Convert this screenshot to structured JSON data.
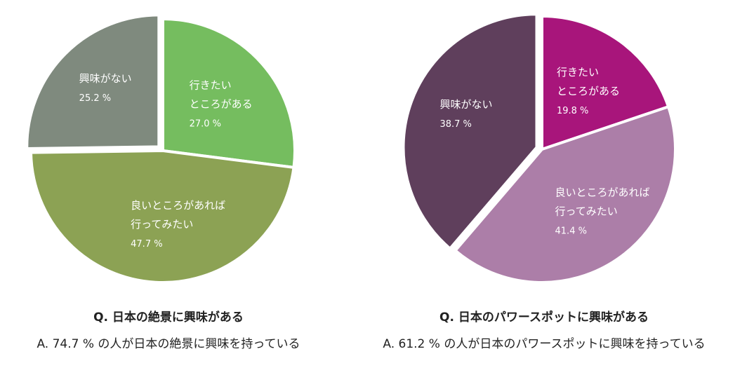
{
  "chart_data": [
    {
      "type": "pie",
      "title": "Q. 日本の絶景に興味がある",
      "caption": "A. 74.7 % の人が日本の絶景に興味を持っている",
      "slices": [
        {
          "label": [
            "行きたい",
            "ところがある"
          ],
          "value": 27.0,
          "value_label": "27.0 %",
          "color": "#75bd5f",
          "exploded": false
        },
        {
          "label": [
            "良いところがあれば",
            "行ってみたい"
          ],
          "value": 47.7,
          "value_label": "47.7 %",
          "color": "#8ca254",
          "exploded": false
        },
        {
          "label": [
            "興味がない"
          ],
          "value": 25.2,
          "value_label": "25.2 %",
          "color": "#7f8a7e",
          "exploded": true
        }
      ]
    },
    {
      "type": "pie",
      "title": "Q. 日本のパワースポットに興味がある",
      "caption": "A. 61.2 % の人が日本のパワースポットに興味を持っている",
      "slices": [
        {
          "label": [
            "行きたい",
            "ところがある"
          ],
          "value": 19.8,
          "value_label": "19.8 %",
          "color": "#a8157b",
          "exploded": false
        },
        {
          "label": [
            "良いところがあれば",
            "行ってみたい"
          ],
          "value": 41.4,
          "value_label": "41.4 %",
          "color": "#ac7ea8",
          "exploded": false
        },
        {
          "label": [
            "興味がない"
          ],
          "value": 38.7,
          "value_label": "38.7 %",
          "color": "#5f3f5c",
          "exploded": true
        }
      ]
    }
  ]
}
